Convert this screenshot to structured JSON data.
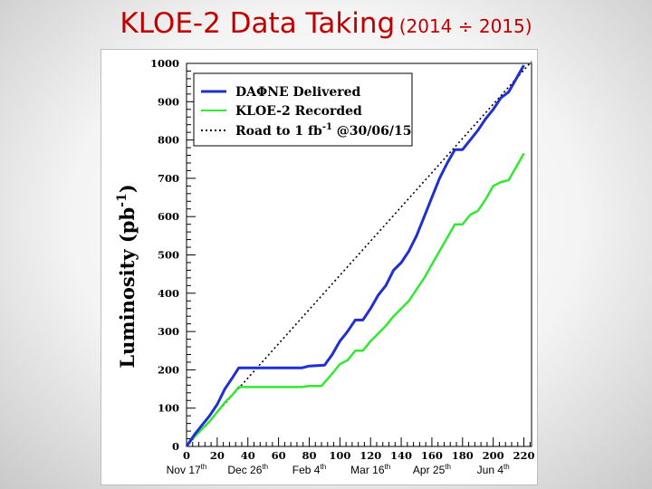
{
  "slide": {
    "title_main": "KLOE-2 Data Taking",
    "title_sub": "(2014 ÷ 2015)"
  },
  "chart_data": {
    "type": "line",
    "title": "KLOE-2 Data Taking (2014 ÷ 2015)",
    "ylabel": "Luminosity (pb",
    "ylabel_sup": "-1",
    "ylabel_end": ")",
    "xlabel": "",
    "xlim": [
      0,
      225
    ],
    "ylim": [
      0,
      1000
    ],
    "x_ticks": [
      0,
      20,
      40,
      60,
      80,
      100,
      120,
      140,
      160,
      180,
      200,
      220
    ],
    "y_ticks": [
      0,
      100,
      200,
      300,
      400,
      500,
      600,
      700,
      800,
      900,
      1000
    ],
    "date_labels": [
      {
        "x": 0,
        "base": "Nov 17",
        "sup": "th"
      },
      {
        "x": 40,
        "base": "Dec 26",
        "sup": "th"
      },
      {
        "x": 80,
        "base": "Feb 4",
        "sup": "th"
      },
      {
        "x": 120,
        "base": "Mar 16",
        "sup": "th"
      },
      {
        "x": 160,
        "base": "Apr 25",
        "sup": "th"
      },
      {
        "x": 200,
        "base": "Jun 4",
        "sup": "th"
      }
    ],
    "legend_position": "top-left",
    "legend": [
      {
        "label": "DAΦNE Delivered"
      },
      {
        "label": "KLOE-2 Recorded"
      },
      {
        "label_pre": "Road to 1 fb",
        "label_sup": "-1",
        "label_post": " @30/06/15"
      }
    ],
    "series": [
      {
        "name": "DAΦNE Delivered",
        "color": "#1f2fd0",
        "style": "solid",
        "points": [
          [
            0,
            0
          ],
          [
            5,
            30
          ],
          [
            10,
            55
          ],
          [
            15,
            80
          ],
          [
            20,
            110
          ],
          [
            25,
            150
          ],
          [
            30,
            180
          ],
          [
            34,
            205
          ],
          [
            40,
            205
          ],
          [
            60,
            205
          ],
          [
            75,
            205
          ],
          [
            80,
            210
          ],
          [
            90,
            212
          ],
          [
            95,
            240
          ],
          [
            100,
            275
          ],
          [
            105,
            300
          ],
          [
            110,
            330
          ],
          [
            115,
            330
          ],
          [
            120,
            360
          ],
          [
            125,
            395
          ],
          [
            130,
            420
          ],
          [
            135,
            460
          ],
          [
            140,
            480
          ],
          [
            145,
            510
          ],
          [
            150,
            550
          ],
          [
            155,
            600
          ],
          [
            160,
            650
          ],
          [
            165,
            700
          ],
          [
            170,
            740
          ],
          [
            175,
            775
          ],
          [
            180,
            775
          ],
          [
            185,
            800
          ],
          [
            190,
            825
          ],
          [
            195,
            855
          ],
          [
            200,
            880
          ],
          [
            205,
            910
          ],
          [
            210,
            925
          ],
          [
            215,
            960
          ],
          [
            220,
            995
          ]
        ]
      },
      {
        "name": "KLOE-2 Recorded",
        "color": "#33e833",
        "style": "solid",
        "points": [
          [
            0,
            0
          ],
          [
            5,
            25
          ],
          [
            10,
            45
          ],
          [
            15,
            65
          ],
          [
            20,
            90
          ],
          [
            25,
            115
          ],
          [
            30,
            135
          ],
          [
            34,
            155
          ],
          [
            40,
            155
          ],
          [
            60,
            155
          ],
          [
            75,
            155
          ],
          [
            80,
            158
          ],
          [
            88,
            158
          ],
          [
            95,
            190
          ],
          [
            100,
            215
          ],
          [
            105,
            225
          ],
          [
            110,
            250
          ],
          [
            115,
            250
          ],
          [
            120,
            275
          ],
          [
            125,
            295
          ],
          [
            130,
            315
          ],
          [
            135,
            340
          ],
          [
            140,
            360
          ],
          [
            145,
            380
          ],
          [
            150,
            410
          ],
          [
            155,
            440
          ],
          [
            160,
            475
          ],
          [
            165,
            510
          ],
          [
            170,
            545
          ],
          [
            175,
            580
          ],
          [
            180,
            580
          ],
          [
            185,
            605
          ],
          [
            190,
            615
          ],
          [
            195,
            645
          ],
          [
            200,
            680
          ],
          [
            205,
            690
          ],
          [
            210,
            695
          ],
          [
            215,
            730
          ],
          [
            220,
            765
          ]
        ]
      },
      {
        "name": "Road to 1 fb-1 @30/06/15",
        "color": "#000000",
        "style": "dotted",
        "points": [
          [
            0,
            0
          ],
          [
            225,
            1005
          ]
        ]
      }
    ]
  }
}
